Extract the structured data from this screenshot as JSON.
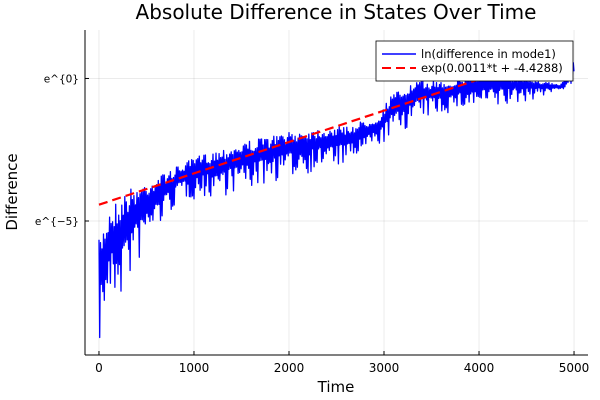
{
  "chart_data": {
    "type": "line",
    "title": "Absolute Difference in States Over Time",
    "xlabel": "Time",
    "ylabel": "Difference",
    "xlim": [
      -147,
      5147
    ],
    "ylim": [
      -9.7,
      1.7
    ],
    "y_scale": "log (natural)",
    "grid": true,
    "legend_position": "top-right",
    "x_ticks": [
      {
        "value": 0,
        "label": "0"
      },
      {
        "value": 1000,
        "label": "1000"
      },
      {
        "value": 2000,
        "label": "2000"
      },
      {
        "value": 3000,
        "label": "3000"
      },
      {
        "value": 4000,
        "label": "4000"
      },
      {
        "value": 5000,
        "label": "5000"
      }
    ],
    "y_ticks": [
      {
        "value": 0,
        "label": "e^{0}"
      },
      {
        "value": -5,
        "label": "e^{−5}"
      }
    ],
    "series": [
      {
        "name": "ln(difference in mode1)",
        "color": "#0000ff",
        "style": "solid, rapidly oscillating",
        "envelope": {
          "upper": {
            "t": [
              0,
              116,
              326,
              642,
              1063,
              1589,
              2116,
              2642,
              2958,
              3063,
              3379,
              3695,
              4011,
              4221,
              4432,
              4853,
              4990,
              5000
            ],
            "v": [
              -5.66,
              -4.48,
              -3.85,
              -3.4,
              -2.69,
              -2.17,
              -1.82,
              -1.64,
              -1.29,
              -0.59,
              -0.07,
              -0.07,
              0.21,
              0.3,
              0.1,
              -0.24,
              0.6,
              1.15
            ]
          },
          "lower": {
            "t": [
              0,
              63,
              221,
              537,
              853,
              1063,
              1589,
              1905,
              2326,
              2642,
              2958,
              3379,
              3800,
              4221,
              5000
            ],
            "v": [
              -9.4,
              -8.35,
              -7.83,
              -5.66,
              -4.27,
              -4.27,
              -3.92,
              -3.57,
              -3.22,
              -3.04,
              -2.34,
              -1.47,
              -1.12,
              -1.12,
              -0.24
            ]
          }
        }
      },
      {
        "name": "exp(0.0011*t + -4.4288)",
        "color": "#ff0000",
        "style": "dashed",
        "slope": 0.0011,
        "intercept": -4.4288
      }
    ]
  }
}
